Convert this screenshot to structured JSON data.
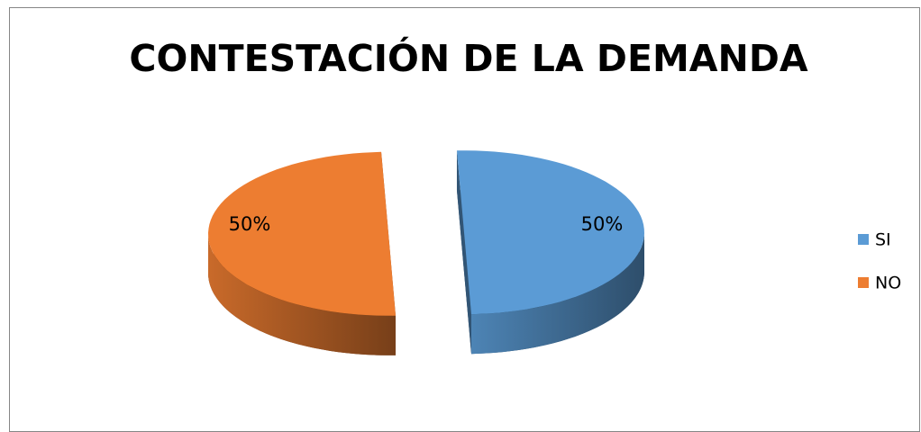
{
  "chart_data": {
    "type": "pie",
    "title": "CONTESTACIÓN DE LA DEMANDA",
    "categories": [
      "SI",
      "NO"
    ],
    "values": [
      50,
      50
    ],
    "value_labels": [
      "50%",
      "50%"
    ],
    "colors": [
      "#5b9bd5",
      "#ed7d31"
    ],
    "legend": "right",
    "explode": true,
    "three_d": true
  }
}
